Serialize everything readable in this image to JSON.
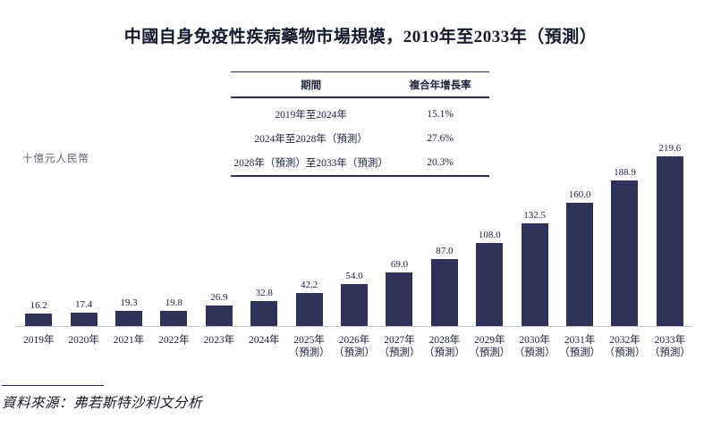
{
  "title": "中國自身免疫性疾病藥物市場規模，2019年至2033年（預測）",
  "source": "資料來源：弗若斯特沙利文分析",
  "cagr_table": {
    "headers": [
      "期間",
      "複合年增長率"
    ],
    "rows": [
      {
        "period": "2019年至2024年",
        "cagr": "15.1%"
      },
      {
        "period": "2024年至2028年（預測）",
        "cagr": "27.6%"
      },
      {
        "period": "2028年（預測）至2033年（預測）",
        "cagr": "20.3%"
      }
    ]
  },
  "chart_data": {
    "type": "bar",
    "title": "中國自身免疫性疾病藥物市場規模，2019年至2033年（預測）",
    "xlabel": "",
    "ylabel": "十億元人民幣",
    "categories": [
      "2019年",
      "2020年",
      "2021年",
      "2022年",
      "2023年",
      "2024年",
      "2025年（預測）",
      "2026年（預測）",
      "2027年（預測）",
      "2028年（預測）",
      "2029年（預測）",
      "2030年（預測）",
      "2031年（預測）",
      "2032年（預測）",
      "2033年（預測）"
    ],
    "values": [
      16.2,
      17.4,
      19.3,
      19.8,
      26.9,
      32.8,
      42.2,
      54.0,
      69.0,
      87.0,
      108.0,
      132.5,
      160.0,
      188.9,
      219.6
    ],
    "value_decimals": 1,
    "ylim": [
      0,
      230
    ],
    "grid": false,
    "legend_position": "none",
    "bar_color": "#2f3158",
    "axis_line_color": "#c9c9cf",
    "label_color": "#1c1f3a"
  }
}
